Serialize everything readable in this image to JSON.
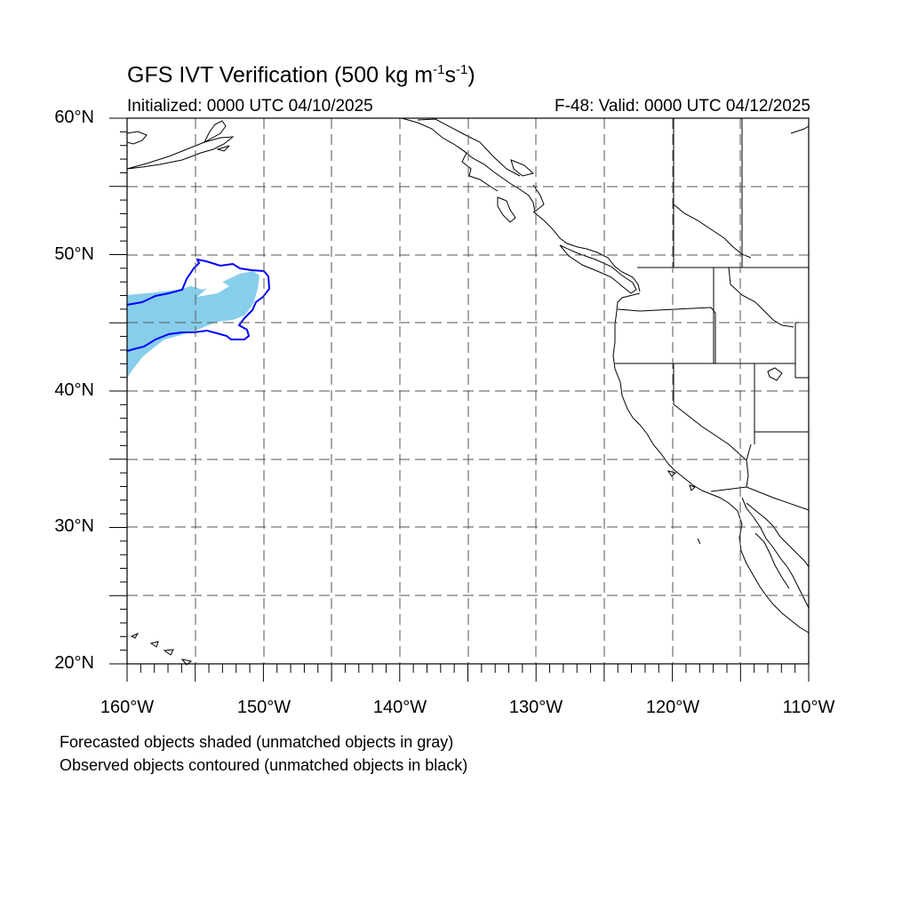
{
  "title": {
    "main": "GFS IVT Verification (500 kg m",
    "exp1": "-1",
    "mid": "s",
    "exp2": "-1",
    "tail": ")"
  },
  "subtitle_left": "Initialized: 0000 UTC 04/10/2025",
  "subtitle_right": "F-48: Valid: 0000 UTC 04/12/2025",
  "lat_labels": [
    "60°N",
    "50°N",
    "40°N",
    "30°N",
    "20°N"
  ],
  "lon_labels": [
    "160°W",
    "150°W",
    "140°W",
    "130°W",
    "120°W",
    "110°W"
  ],
  "footnotes": [
    "Forecasted objects shaded (unmatched objects in gray)",
    "Observed objects contoured (unmatched objects in black)"
  ],
  "map": {
    "extent": {
      "lon_min": -160,
      "lon_max": -110,
      "lat_min": 20,
      "lat_max": 60
    },
    "colors": {
      "forecast_shade": "#87ceeb",
      "observed_contour": "#0000ff",
      "coast": "#000000"
    }
  }
}
